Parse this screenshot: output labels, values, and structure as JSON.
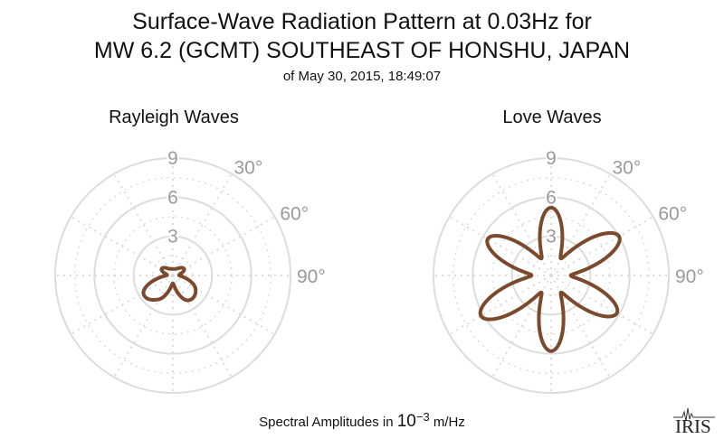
{
  "header": {
    "title_line1": "Surface-Wave Radiation Pattern at 0.03Hz for",
    "title_line2": "MW 6.2 (GCMT) SOUTHEAST OF HONSHU, JAPAN",
    "subtitle": "of May 30, 2015, 18:49:07"
  },
  "footer": {
    "caption_text": "Spectral Amplitudes in",
    "caption_base": "10",
    "caption_exp": "−3",
    "caption_unit": "m/Hz",
    "logo_text": "IRIS"
  },
  "colors": {
    "pattern": "#7b4a2d",
    "grid": "#dcdcdc",
    "label": "#9a9a9a"
  },
  "chart_data": [
    {
      "type": "polar-line",
      "title": "Rayleigh Waves",
      "radial_ticks": [
        3,
        6,
        9
      ],
      "radial_range": [
        0,
        9
      ],
      "angle_tick_labels": [
        "30°",
        "60°",
        "90°"
      ],
      "angles_deg": [
        0,
        30,
        60,
        90,
        120,
        150,
        180,
        210,
        240,
        270,
        300,
        330
      ],
      "radius": [
        0.5,
        0.6,
        1.0,
        0.5,
        2.0,
        2.2,
        0.6,
        2.1,
        2.6,
        0.5,
        1.0,
        0.6
      ],
      "grid": true
    },
    {
      "type": "polar-line",
      "title": "Love Waves",
      "radial_ticks": [
        3,
        6,
        9
      ],
      "radial_range": [
        0,
        9
      ],
      "angle_tick_labels": [
        "30°",
        "60°",
        "90°"
      ],
      "angles_deg": [
        0,
        30,
        60,
        90,
        120,
        150,
        180,
        210,
        240,
        270,
        300,
        330
      ],
      "radius": [
        5.2,
        1.5,
        6.0,
        1.5,
        5.8,
        1.5,
        5.8,
        1.5,
        6.2,
        1.5,
        5.6,
        1.5
      ],
      "grid": true
    }
  ]
}
